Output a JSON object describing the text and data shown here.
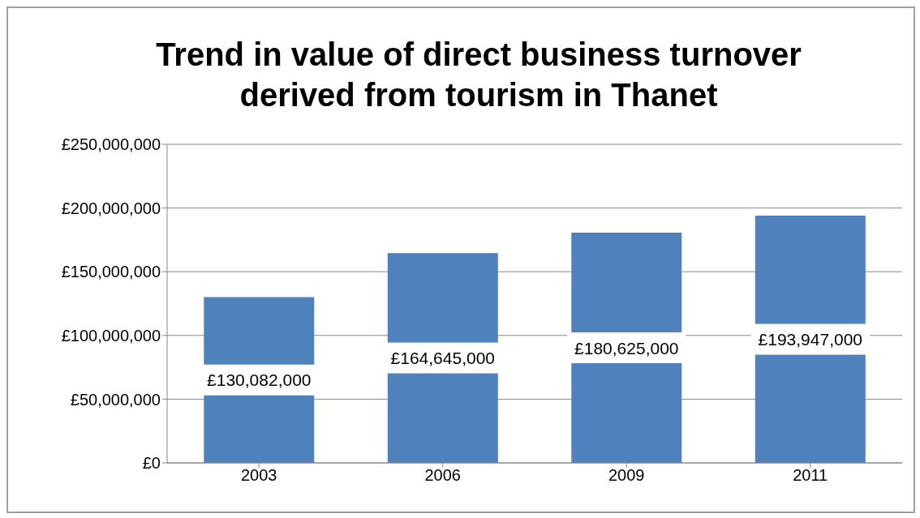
{
  "chart_data": {
    "type": "bar",
    "title": "Trend in value of direct business turnover derived from tourism in Thanet",
    "categories": [
      "2003",
      "2006",
      "2009",
      "2011"
    ],
    "values": [
      130082000,
      164645000,
      180625000,
      193947000
    ],
    "color": "#4f81bd",
    "value_labels": [
      "£130,082,000",
      "£164,645,000",
      "£180,625,000",
      "£193,947,000"
    ],
    "ylim": [
      0,
      250000000
    ],
    "yticks": [
      {
        "value": 0,
        "label": "£0"
      },
      {
        "value": 50000000,
        "label": "£50,000,000"
      },
      {
        "value": 100000000,
        "label": "£100,000,000"
      },
      {
        "value": 150000000,
        "label": "£150,000,000"
      },
      {
        "value": 200000000,
        "label": "£200,000,000"
      },
      {
        "value": 250000000,
        "label": "£250,000,000"
      }
    ],
    "grid": "y",
    "legend": false
  }
}
